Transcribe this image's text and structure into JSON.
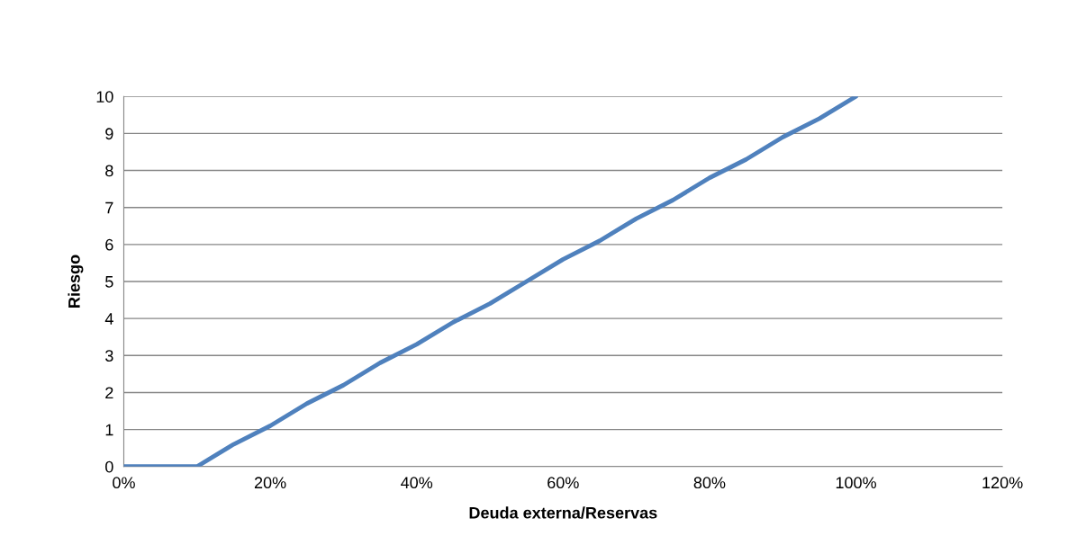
{
  "chart_data": {
    "type": "line",
    "xlabel": "Deuda externa/Reservas",
    "ylabel": "Riesgo",
    "x": [
      0,
      5,
      10,
      15,
      20,
      25,
      30,
      35,
      40,
      45,
      50,
      55,
      60,
      65,
      70,
      75,
      80,
      85,
      90,
      95,
      100
    ],
    "series": [
      {
        "color": "#4f81bd",
        "values": [
          0,
          0,
          0,
          0.6,
          1.1,
          1.7,
          2.2,
          2.8,
          3.3,
          3.9,
          4.4,
          5.0,
          5.6,
          6.1,
          6.7,
          7.2,
          7.8,
          8.3,
          8.9,
          9.4,
          10
        ]
      }
    ],
    "xlim": [
      0,
      120
    ],
    "xticks": [
      {
        "value": 0,
        "label": "0%"
      },
      {
        "value": 20,
        "label": "20%"
      },
      {
        "value": 40,
        "label": "40%"
      },
      {
        "value": 60,
        "label": "60%"
      },
      {
        "value": 80,
        "label": "80%"
      },
      {
        "value": 100,
        "label": "100%"
      },
      {
        "value": 120,
        "label": "120%"
      }
    ],
    "ylim": [
      0,
      10
    ],
    "yticks": [
      0,
      1,
      2,
      3,
      4,
      5,
      6,
      7,
      8,
      9,
      10
    ],
    "grid": "y",
    "marker": "none",
    "line_style": "solid",
    "legend": false
  }
}
